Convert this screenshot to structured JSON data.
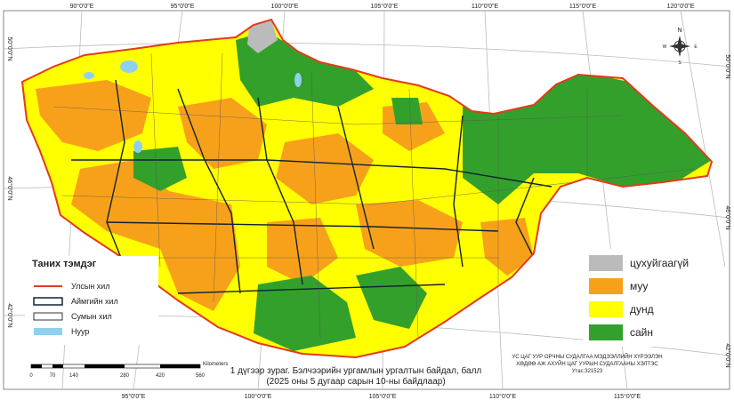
{
  "map": {
    "top_longitudes": [
      "90°0'0\"E",
      "95°0'0\"E",
      "100°0'0\"E",
      "105°0'0\"E",
      "110°0'0\"E",
      "115°0'0\"E",
      "120°0'0\"E"
    ],
    "bottom_longitudes": [
      "95°0'0\"E",
      "100°0'0\"E",
      "105°0'0\"E",
      "110°0'0\"E",
      "115°0'0\"E"
    ],
    "left_latitudes": [
      "50°0'0\"N",
      "46°0'0\"N",
      "42°0'0\"N"
    ],
    "right_latitudes": [
      "50°0'0\"N",
      "46°0'0\"N",
      "42°0'0\"N"
    ],
    "compass": [
      "N",
      "S",
      "E",
      "W"
    ]
  },
  "legend": {
    "title": "Таних тэмдэг",
    "items": [
      "Улсын хил",
      "Аймгийн хил",
      "Сумын хил",
      "Нуур"
    ]
  },
  "classes": [
    "цухуйгаагүй",
    "муу",
    "дунд",
    "сайн"
  ],
  "scale": {
    "ticks": [
      "0",
      "70",
      "140",
      "280",
      "420",
      "560"
    ],
    "unit": "Kilometers"
  },
  "caption": [
    "1 дүгээр зураг. Бэлчээрийн ургамлын ургалтын байдал, балл",
    "(2025 оны 5 дугаар сарын 10-ны байдлаар)"
  ],
  "organization": [
    "УС ЦАГ УУР ОРЧНЫ СУДАЛГАА МЭДЭЭЛЛИЙН ХҮРЭЭЛЭН",
    "ХӨДӨӨ АЖ АХУЙН ЦАГ УУРЫН СУДАЛГААНЫ ХЭЛТЭС",
    "Утас:321523"
  ]
}
